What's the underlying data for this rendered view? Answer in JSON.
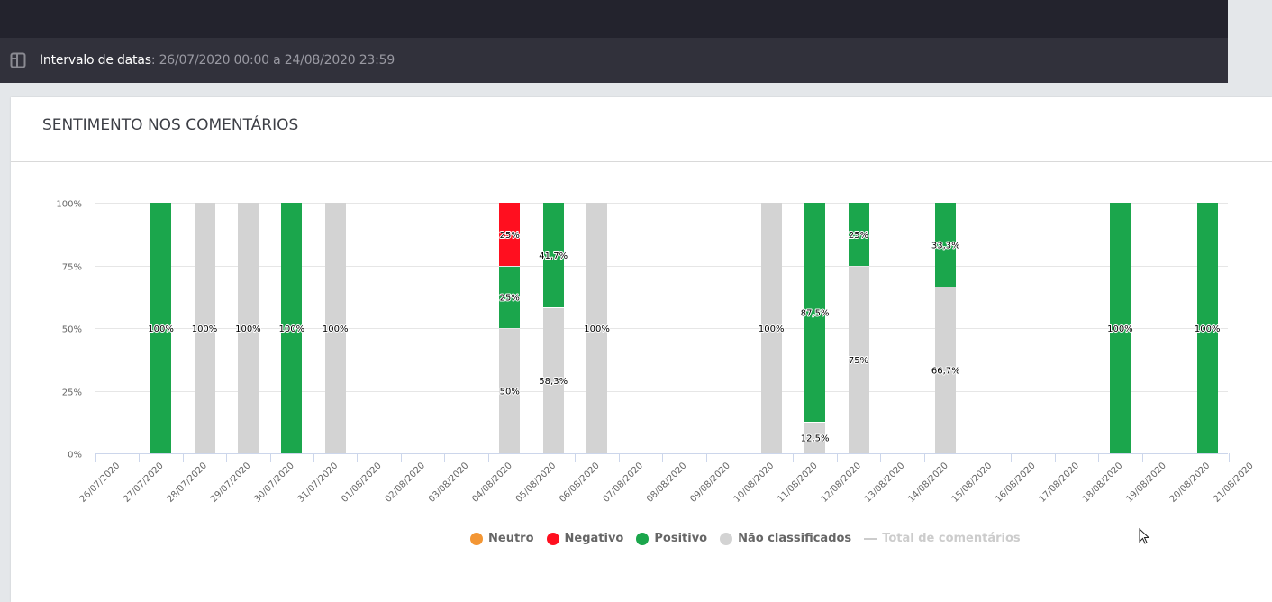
{
  "filter_bar": {
    "icon": "layout-panel-icon",
    "label": "Intervalo de datas",
    "separator": ": ",
    "value": "26/07/2020 00:00 a 24/08/2020 23:59"
  },
  "card": {
    "title": "SENTIMENTO NOS COMENTÁRIOS"
  },
  "colors": {
    "neutro": "#f39634",
    "negativo": "#ff0f1f",
    "positivo": "#1ba64c",
    "nao_classificados": "#d3d3d3",
    "total": "#cccccc"
  },
  "legend": [
    {
      "key": "neutro",
      "label": "Neutro",
      "shape": "dot"
    },
    {
      "key": "negativo",
      "label": "Negativo",
      "shape": "dot"
    },
    {
      "key": "positivo",
      "label": "Positivo",
      "shape": "dot"
    },
    {
      "key": "nao_classificados",
      "label": "Não classificados",
      "shape": "dot"
    },
    {
      "key": "total",
      "label": "Total de comentários",
      "shape": "line",
      "hidden": true
    }
  ],
  "chart_data": {
    "type": "bar",
    "stacked": "percent",
    "title": "SENTIMENTO NOS COMENTÁRIOS",
    "xlabel": "",
    "ylabel": "",
    "ylim": [
      0,
      100
    ],
    "yticks": [
      "0%",
      "25%",
      "50%",
      "75%",
      "100%"
    ],
    "grid": true,
    "legend_position": "bottom-center",
    "categories": [
      "26/07/2020",
      "27/07/2020",
      "28/07/2020",
      "29/07/2020",
      "30/07/2020",
      "31/07/2020",
      "01/08/2020",
      "02/08/2020",
      "03/08/2020",
      "04/08/2020",
      "05/08/2020",
      "06/08/2020",
      "07/08/2020",
      "08/08/2020",
      "09/08/2020",
      "10/08/2020",
      "11/08/2020",
      "12/08/2020",
      "13/08/2020",
      "14/08/2020",
      "15/08/2020",
      "16/08/2020",
      "17/08/2020",
      "18/08/2020",
      "19/08/2020",
      "20/08/2020",
      "21/08/2020"
    ],
    "series": [
      {
        "name": "Não classificados",
        "key": "nao_classificados",
        "values": [
          0,
          0,
          100,
          100,
          0,
          100,
          0,
          0,
          0,
          50,
          58.3,
          100,
          0,
          0,
          0,
          100,
          12.5,
          75,
          0,
          66.7,
          0,
          0,
          0,
          0,
          0,
          0,
          0
        ],
        "labels": [
          "",
          "",
          "100%",
          "100%",
          "",
          "100%",
          "",
          "",
          "",
          "50%",
          "58,3%",
          "100%",
          "",
          "",
          "",
          "100%",
          "12,5%",
          "75%",
          "",
          "66,7%",
          "",
          "",
          "",
          "",
          "",
          "",
          ""
        ]
      },
      {
        "name": "Positivo",
        "key": "positivo",
        "values": [
          0,
          100,
          0,
          0,
          100,
          0,
          0,
          0,
          0,
          25,
          41.7,
          0,
          0,
          0,
          0,
          0,
          87.5,
          25,
          0,
          33.3,
          0,
          0,
          0,
          100,
          0,
          100,
          0
        ],
        "labels": [
          "",
          "100%",
          "",
          "",
          "100%",
          "",
          "",
          "",
          "",
          "25%",
          "41,7%",
          "",
          "",
          "",
          "",
          "",
          "87,5%",
          "25%",
          "",
          "33,3%",
          "",
          "",
          "",
          "100%",
          "",
          "100%",
          ""
        ]
      },
      {
        "name": "Negativo",
        "key": "negativo",
        "values": [
          0,
          0,
          0,
          0,
          0,
          0,
          0,
          0,
          0,
          25,
          0,
          0,
          0,
          0,
          0,
          0,
          0,
          0,
          0,
          0,
          0,
          0,
          0,
          0,
          0,
          0,
          0
        ],
        "labels": [
          "",
          "",
          "",
          "",
          "",
          "",
          "",
          "",
          "",
          "25%",
          "",
          "",
          "",
          "",
          "",
          "",
          "",
          "",
          "",
          "",
          "",
          "",
          "",
          "",
          "",
          "",
          ""
        ]
      },
      {
        "name": "Neutro",
        "key": "neutro",
        "values": [
          0,
          0,
          0,
          0,
          0,
          0,
          0,
          0,
          0,
          0,
          0,
          0,
          0,
          0,
          0,
          0,
          0,
          0,
          0,
          0,
          0,
          0,
          0,
          0,
          0,
          0,
          0
        ],
        "labels": [
          "",
          "",
          "",
          "",
          "",
          "",
          "",
          "",
          "",
          "",
          "",
          "",
          "",
          "",
          "",
          "",
          "",
          "",
          "",
          "",
          "",
          "",
          "",
          "",
          "",
          "",
          ""
        ]
      }
    ]
  }
}
